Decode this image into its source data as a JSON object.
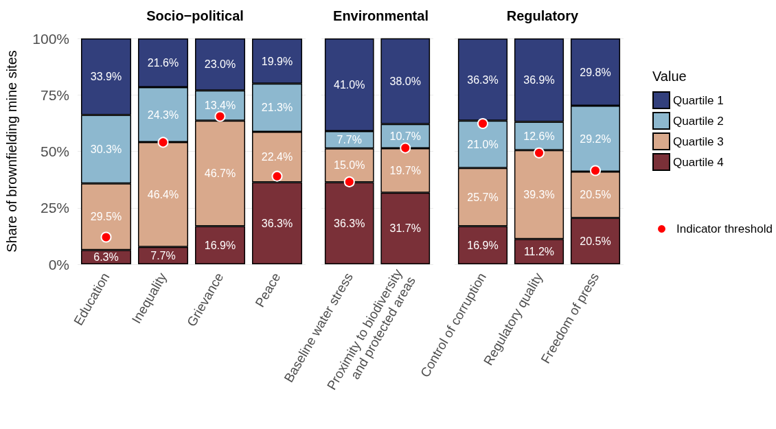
{
  "chart_data": [
    {
      "type": "bar",
      "title": "Socio−political",
      "ylabel": "Share of brownfielding mine sites",
      "stacked": true,
      "categories": [
        "Education",
        "Inequality",
        "Grievance",
        "Peace"
      ],
      "ylim": [
        0,
        100
      ],
      "yticks": [
        {
          "value": 0,
          "label": "0%"
        },
        {
          "value": 25,
          "label": "25%"
        },
        {
          "value": 50,
          "label": "50%"
        },
        {
          "value": 75,
          "label": "75%"
        },
        {
          "value": 100,
          "label": "100%"
        }
      ],
      "grid": "y",
      "series": [
        {
          "color": "#7a3038",
          "values": [
            6.3,
            7.7,
            16.9,
            36.3
          ],
          "value_labels": [
            "6.3%",
            "7.7%",
            "16.9%",
            "36.3%"
          ]
        },
        {
          "color": "#d9a98c",
          "values": [
            29.5,
            46.4,
            46.7,
            22.4
          ],
          "value_labels": [
            "29.5%",
            "46.4%",
            "46.7%",
            "22.4%"
          ]
        },
        {
          "color": "#8db8cf",
          "values": [
            30.3,
            24.3,
            13.4,
            21.3
          ],
          "value_labels": [
            "30.3%",
            "24.3%",
            "13.4%",
            "21.3%"
          ]
        },
        {
          "color": "#323f7c",
          "values": [
            33.9,
            21.6,
            23.0,
            19.9
          ],
          "value_labels": [
            "33.9%",
            "21.6%",
            "23.0%",
            "19.9%"
          ]
        },
        {
          "type": "scatter",
          "color": "#ff0000",
          "marker": "circle",
          "x": [
            "Education",
            "Inequality",
            "Grievance",
            "Peace"
          ],
          "values": [
            12,
            54,
            65.5,
            39
          ]
        }
      ]
    },
    {
      "type": "bar",
      "title": "Environmental",
      "stacked": true,
      "categories": [
        "Baseline water stress",
        "Proximity to biodiversity\nand protected areas"
      ],
      "ylim": [
        0,
        100
      ],
      "yticks": [
        0,
        25,
        50,
        75,
        100
      ],
      "grid": "y",
      "tick_labels": "x",
      "series": [
        {
          "color": "#7a3038",
          "values": [
            36.3,
            31.7
          ],
          "value_labels": [
            "36.3%",
            "31.7%"
          ]
        },
        {
          "color": "#d9a98c",
          "values": [
            15.0,
            19.7
          ],
          "value_labels": [
            "15.0%",
            "19.7%"
          ]
        },
        {
          "color": "#8db8cf",
          "values": [
            7.7,
            10.7
          ],
          "value_labels": [
            "7.7%",
            "10.7%"
          ]
        },
        {
          "color": "#323f7c",
          "values": [
            41.0,
            38.0
          ],
          "value_labels": [
            "41.0%",
            "38.0%"
          ]
        },
        {
          "type": "scatter",
          "color": "#ff0000",
          "marker": "circle",
          "x": [
            "Baseline water stress",
            "Proximity to biodiversity\nand protected areas"
          ],
          "values": [
            36.5,
            51.5
          ]
        }
      ]
    },
    {
      "type": "bar",
      "title": "Regulatory",
      "stacked": true,
      "categories": [
        "Control of corruption",
        "Regulatory quality",
        "Freedom of press"
      ],
      "ylim": [
        0,
        100
      ],
      "yticks": [
        0,
        25,
        50,
        75,
        100
      ],
      "grid": "y",
      "tick_labels": "x",
      "legend": "right",
      "legend_title": "Value",
      "series": [
        {
          "name": "Quartile 4",
          "color": "#7a3038",
          "values": [
            16.9,
            11.2,
            20.5
          ],
          "value_labels": [
            "16.9%",
            "11.2%",
            "20.5%"
          ]
        },
        {
          "name": "Quartile 3",
          "color": "#d9a98c",
          "values": [
            25.7,
            39.3,
            20.5
          ],
          "value_labels": [
            "25.7%",
            "39.3%",
            "20.5%"
          ]
        },
        {
          "name": "Quartile 2",
          "color": "#8db8cf",
          "values": [
            21.0,
            12.6,
            29.2
          ],
          "value_labels": [
            "21.0%",
            "12.6%",
            "29.2%"
          ]
        },
        {
          "name": "Quartile 1",
          "color": "#323f7c",
          "values": [
            36.3,
            36.9,
            29.8
          ],
          "value_labels": [
            "36.3%",
            "36.9%",
            "29.8%"
          ]
        },
        {
          "name": "Indicator threshold",
          "type": "scatter",
          "color": "#ff0000",
          "marker": "circle",
          "x": [
            "Control of corruption",
            "Regulatory quality",
            "Freedom of press"
          ],
          "values": [
            62.3,
            49.3,
            41.5
          ]
        }
      ]
    }
  ]
}
